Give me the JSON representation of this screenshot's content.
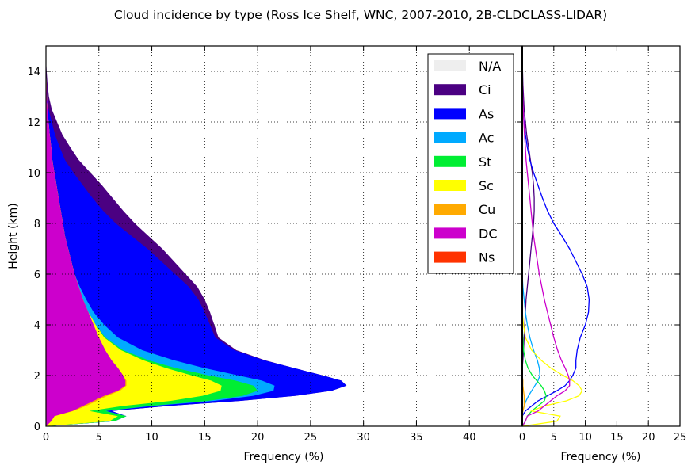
{
  "figure": {
    "title": "Cloud incidence by type (Ross Ice Shelf, WNC, 2007-2010, 2B-CLDCLASS-LIDAR)"
  },
  "chart_data": [
    {
      "type": "area",
      "stacked": true,
      "orientation": "horizontal",
      "xlabel": "Frequency (%)",
      "ylabel": "Height (km)",
      "xlim": [
        0,
        45
      ],
      "ylim": [
        0,
        15
      ],
      "xticks": [
        0,
        5,
        10,
        15,
        20,
        25,
        30,
        35,
        40
      ],
      "yticks": [
        0,
        2,
        4,
        6,
        8,
        10,
        12,
        14
      ],
      "grid": true,
      "legend_position": "top-right",
      "y": [
        0.2,
        0.4,
        0.6,
        0.8,
        1.0,
        1.2,
        1.4,
        1.6,
        1.8,
        2.0,
        2.3,
        2.6,
        3.0,
        3.5,
        4.0,
        4.5,
        5.0,
        5.5,
        6.0,
        6.5,
        7.0,
        7.5,
        8.0,
        8.5,
        9.0,
        9.5,
        10.0,
        10.5,
        11.0,
        11.5,
        12.0,
        12.5,
        13.0,
        13.5,
        14.0,
        14.5
      ],
      "series": [
        {
          "name": "N/A",
          "color": "#eeeeee",
          "values": [
            0,
            0,
            0,
            0,
            0,
            0,
            0,
            0,
            0,
            0,
            0,
            0,
            0,
            0,
            0,
            0,
            0,
            0,
            0,
            0,
            0,
            0,
            0,
            0,
            0,
            0,
            0,
            0,
            0,
            0,
            0,
            0,
            0,
            0,
            0,
            0
          ]
        },
        {
          "name": "Ci",
          "color": "#4b0082",
          "values": [
            0,
            0,
            0,
            0,
            0,
            0,
            0,
            0,
            0,
            0,
            0,
            0.1,
            0.2,
            0.3,
            0.4,
            0.5,
            0.6,
            0.8,
            1.0,
            1.2,
            1.4,
            1.6,
            1.8,
            1.9,
            1.9,
            1.8,
            1.6,
            1.3,
            1.0,
            0.7,
            0.5,
            0.3,
            0.2,
            0.1,
            0.05,
            0
          ]
        },
        {
          "name": "As",
          "color": "#0000ff",
          "values": [
            0,
            0,
            0.5,
            1.5,
            2.5,
            4.0,
            5.5,
            6.8,
            7.5,
            8.0,
            8.5,
            8.5,
            8.7,
            9.2,
            10.0,
            10.5,
            10.6,
            10.3,
            9.5,
            8.5,
            7.5,
            6.3,
            5.0,
            4.0,
            3.2,
            2.5,
            1.8,
            1.2,
            0.8,
            0.5,
            0.3,
            0.1,
            0,
            0,
            0,
            0
          ]
        },
        {
          "name": "Ac",
          "color": "#00aaff",
          "values": [
            0,
            0,
            0.1,
            0.3,
            0.6,
            1.0,
            1.5,
            2.0,
            2.5,
            2.8,
            2.7,
            2.4,
            1.8,
            1.2,
            0.8,
            0.5,
            0.3,
            0.1,
            0,
            0,
            0,
            0,
            0,
            0,
            0,
            0,
            0,
            0,
            0,
            0,
            0,
            0,
            0,
            0,
            0,
            0
          ]
        },
        {
          "name": "St",
          "color": "#00ee33",
          "values": [
            0.5,
            0.8,
            1.5,
            2.5,
            3.5,
            3.8,
            3.5,
            3.0,
            2.3,
            1.6,
            0.9,
            0.5,
            0.2,
            0.1,
            0,
            0,
            0,
            0,
            0,
            0,
            0,
            0,
            0,
            0,
            0,
            0,
            0,
            0,
            0,
            0,
            0,
            0,
            0,
            0,
            0,
            0
          ]
        },
        {
          "name": "Sc",
          "color": "#ffff00",
          "values": [
            5.5,
            6.0,
            1.5,
            3.5,
            7.0,
            9.0,
            9.5,
            9.0,
            8.0,
            6.5,
            4.5,
            3.0,
            1.5,
            0.5,
            0.2,
            0,
            0,
            0,
            0,
            0,
            0,
            0,
            0,
            0,
            0,
            0,
            0,
            0,
            0,
            0,
            0,
            0,
            0,
            0,
            0,
            0
          ]
        },
        {
          "name": "Cu",
          "color": "#ffaa00",
          "values": [
            0,
            0,
            0.1,
            0.3,
            0.3,
            0.3,
            0.2,
            0.1,
            0.1,
            0,
            0,
            0,
            0,
            0,
            0,
            0,
            0,
            0,
            0,
            0,
            0,
            0,
            0,
            0,
            0,
            0,
            0,
            0,
            0,
            0,
            0,
            0,
            0,
            0,
            0,
            0
          ]
        },
        {
          "name": "DC",
          "color": "#cc00cc",
          "values": [
            0.5,
            0.8,
            2.5,
            3.5,
            4.5,
            5.5,
            6.8,
            7.5,
            7.5,
            7.3,
            6.8,
            6.2,
            5.6,
            5.0,
            4.5,
            4.0,
            3.5,
            3.1,
            2.7,
            2.4,
            2.1,
            1.8,
            1.6,
            1.4,
            1.2,
            1.0,
            0.8,
            0.6,
            0.5,
            0.35,
            0.25,
            0.15,
            0.08,
            0.05,
            0.02,
            0
          ]
        },
        {
          "name": "Ns",
          "color": "#ff3300",
          "values": [
            0,
            0,
            0,
            0,
            0,
            0,
            0,
            0,
            0,
            0,
            0,
            0,
            0,
            0,
            0,
            0,
            0,
            0,
            0,
            0,
            0,
            0,
            0,
            0,
            0,
            0,
            0,
            0,
            0,
            0,
            0,
            0,
            0,
            0,
            0,
            0
          ]
        }
      ]
    },
    {
      "type": "line",
      "orientation": "horizontal",
      "xlabel": "Frequency (%)",
      "xlim": [
        0,
        25
      ],
      "ylim": [
        0,
        15
      ],
      "xticks": [
        0,
        5,
        10,
        15,
        20,
        25
      ],
      "grid": true
    }
  ]
}
